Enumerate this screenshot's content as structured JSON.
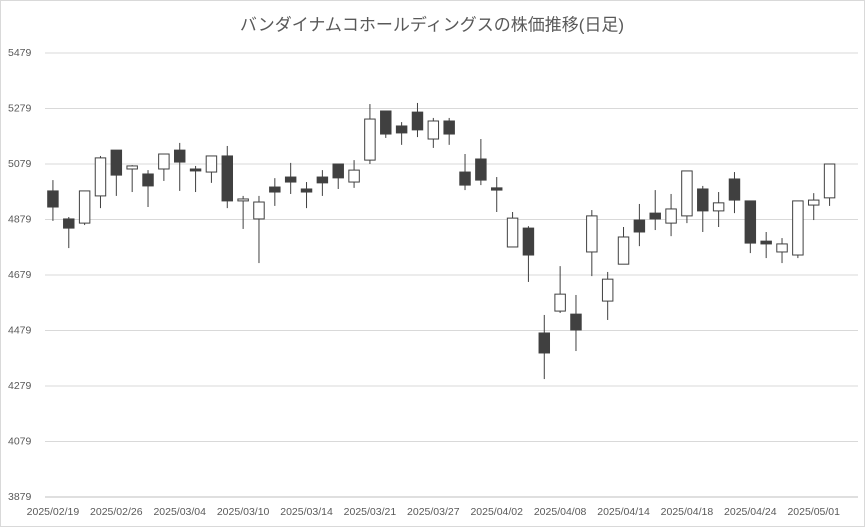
{
  "chart_data": {
    "type": "candlestick",
    "title": "バンダイナムコホールディングスの株価推移(日足)",
    "categories": [
      "2025/02/19",
      null,
      null,
      null,
      "2025/02/26",
      null,
      null,
      null,
      "2025/03/04",
      null,
      null,
      null,
      "2025/03/10",
      null,
      null,
      null,
      "2025/03/14",
      null,
      null,
      null,
      "2025/03/21",
      null,
      null,
      null,
      "2025/03/27",
      null,
      null,
      null,
      "2025/04/02",
      null,
      null,
      null,
      "2025/04/08",
      null,
      null,
      null,
      "2025/04/14",
      null,
      null,
      null,
      "2025/04/18",
      null,
      null,
      null,
      "2025/04/24",
      null,
      null,
      null,
      "2025/05/01",
      null
    ],
    "series": [
      {
        "open": [
          4982,
          4881,
          4866,
          4964,
          5129,
          5061,
          5043,
          5061,
          5129,
          5061,
          5050,
          5108,
          4946,
          4881,
          4996,
          5032,
          4989,
          5032,
          5079,
          5014,
          5093,
          5270,
          5216,
          5266,
          5169,
          5234,
          5050,
          5097,
          4993,
          4780,
          4848,
          4470,
          4549,
          4538,
          4762,
          4585,
          4718,
          4877,
          4902,
          4866,
          4892,
          4989,
          4910,
          5025,
          4946,
          4801,
          4762,
          4751,
          4931,
          4957
        ],
        "high": [
          5021,
          4888,
          4982,
          5108,
          5129,
          5075,
          5057,
          5115,
          5155,
          5072,
          5108,
          5144,
          4964,
          4964,
          5028,
          5083,
          5014,
          5057,
          5079,
          5093,
          5295,
          5270,
          5230,
          5299,
          5245,
          5245,
          5115,
          5169,
          5032,
          4906,
          4855,
          4535,
          4711,
          4607,
          4913,
          4690,
          4852,
          4935,
          4985,
          4971,
          5054,
          5000,
          4978,
          5050,
          4946,
          4834,
          4812,
          4946,
          4974,
          5079
        ],
        "low": [
          4874,
          4776,
          4859,
          4920,
          4964,
          4978,
          4924,
          5018,
          4982,
          4978,
          5011,
          4920,
          4845,
          4722,
          4928,
          4971,
          4920,
          4964,
          4989,
          4993,
          5079,
          5173,
          5148,
          5176,
          5137,
          5148,
          4985,
          5003,
          4906,
          4780,
          4654,
          4304,
          4542,
          4405,
          4675,
          4517,
          4718,
          4783,
          4841,
          4819,
          4866,
          4834,
          4852,
          4902,
          4758,
          4740,
          4722,
          4740,
          4877,
          4928
        ],
        "close": [
          4924,
          4848,
          4982,
          5101,
          5039,
          5072,
          5000,
          5115,
          5086,
          5054,
          5108,
          4946,
          4953,
          4942,
          4978,
          5014,
          4978,
          5011,
          5029,
          5057,
          5241,
          5187,
          5191,
          5202,
          5234,
          5187,
          5003,
          5021,
          4985,
          4884,
          4751,
          4398,
          4610,
          4481,
          4892,
          4664,
          4816,
          4834,
          4881,
          4917,
          5054,
          4910,
          4939,
          4949,
          4794,
          4791,
          4791,
          4946,
          4949,
          5079
        ]
      }
    ],
    "up_color": "#ffffff",
    "down_color": "#404040",
    "ylim": [
      3879,
      5479
    ],
    "yticks": [
      3879,
      4079,
      4279,
      4479,
      4679,
      4879,
      5079,
      5279,
      5479
    ],
    "grid": true
  }
}
